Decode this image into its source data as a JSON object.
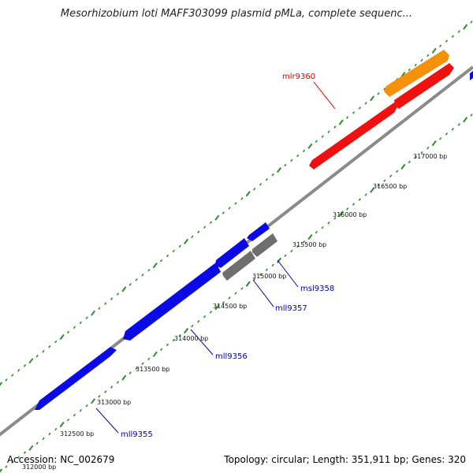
{
  "title": "Mesorhizobium loti MAFF303099 plasmid pMLa, complete sequenc...",
  "footer": {
    "accession": "Accession: NC_002679",
    "summary": "Topology: circular; Length: 351,911 bp; Genes: 320"
  },
  "colors": {
    "reverse_gene": "#0a0ae6",
    "forward_gene": "#f01010",
    "gray_gene": "#6e6e6e",
    "orange_gene": "#f5900a",
    "tick": "#2e8b2e",
    "backbone": "#8a8a8a"
  },
  "tick_labels": [
    "312000 bp",
    "312500 bp",
    "313000 bp",
    "313500 bp",
    "314000 bp",
    "314500 bp",
    "315000 bp",
    "315500 bp",
    "316000 bp",
    "316500 bp",
    "317000 bp"
  ],
  "genes": [
    {
      "name": "mll9355",
      "color": "#0000b0",
      "strand": "reverse",
      "fill": "#0a0ae6"
    },
    {
      "name": "mll9356",
      "color": "#0000b0",
      "strand": "reverse",
      "fill": "#0a0ae6"
    },
    {
      "name": "mll9357",
      "color": "#0000b0",
      "strand": "reverse",
      "fill": "#6e6e6e"
    },
    {
      "name": "msl9358",
      "color": "#0000b0",
      "strand": "reverse",
      "fill": "#6e6e6e"
    },
    {
      "name": "mlr9360",
      "color": "#e00000",
      "strand": "forward",
      "fill": "#f01010"
    }
  ]
}
